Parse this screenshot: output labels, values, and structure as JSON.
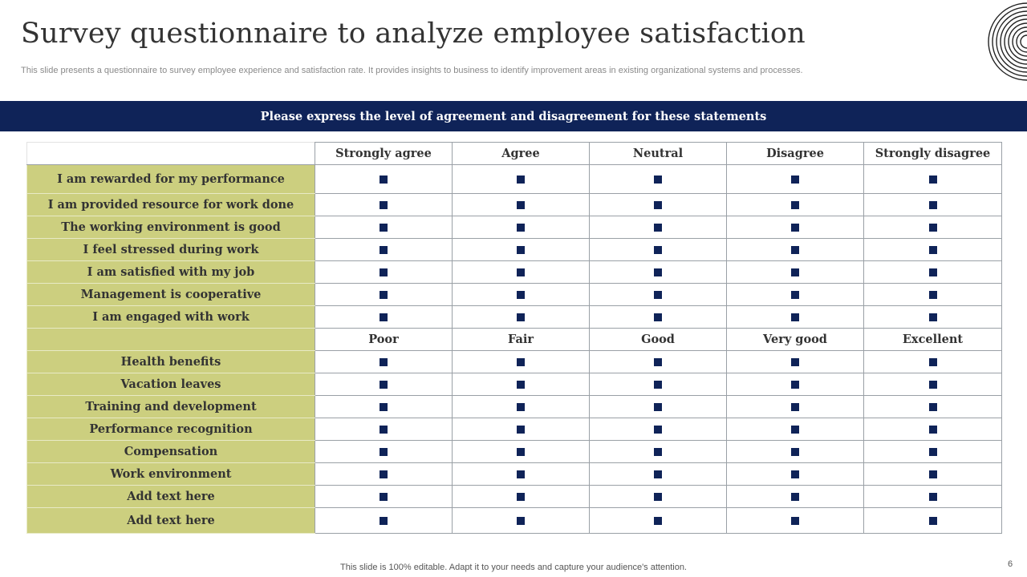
{
  "title": "Survey questionnaire to analyze employee satisfaction",
  "subtitle": "This slide presents a questionnaire to survey employee experience and satisfaction rate. It provides insights to business to identify improvement areas in existing organizational systems and processes.",
  "banner": "Please express the level of agreement and disagreement for these statements",
  "agreement": {
    "columns": [
      "Strongly agree",
      "Agree",
      "Neutral",
      "Disagree",
      "Strongly disagree"
    ],
    "statements": [
      "I am rewarded for my performance",
      "I am provided resource for work done",
      "The working environment is good",
      "I feel stressed during work",
      "I am satisfied with my job",
      "Management is cooperative",
      "I am engaged with work"
    ]
  },
  "rating": {
    "columns": [
      "Poor",
      "Fair",
      "Good",
      "Very good",
      "Excellent"
    ],
    "statements": [
      "Health benefits",
      "Vacation leaves",
      "Training and development",
      "Performance recognition",
      "Compensation",
      "Work environment",
      "Add text here",
      "Add text here"
    ]
  },
  "footer": "This slide is 100% editable. Adapt it to your needs and capture your audience's attention.",
  "page_number": "6",
  "colors": {
    "navy": "#0f2358",
    "label_fill": "#cccf7f",
    "text": "#333333"
  },
  "icons": {
    "checkbox": "square-checkbox-icon",
    "decoration": "concentric-circles-icon"
  }
}
